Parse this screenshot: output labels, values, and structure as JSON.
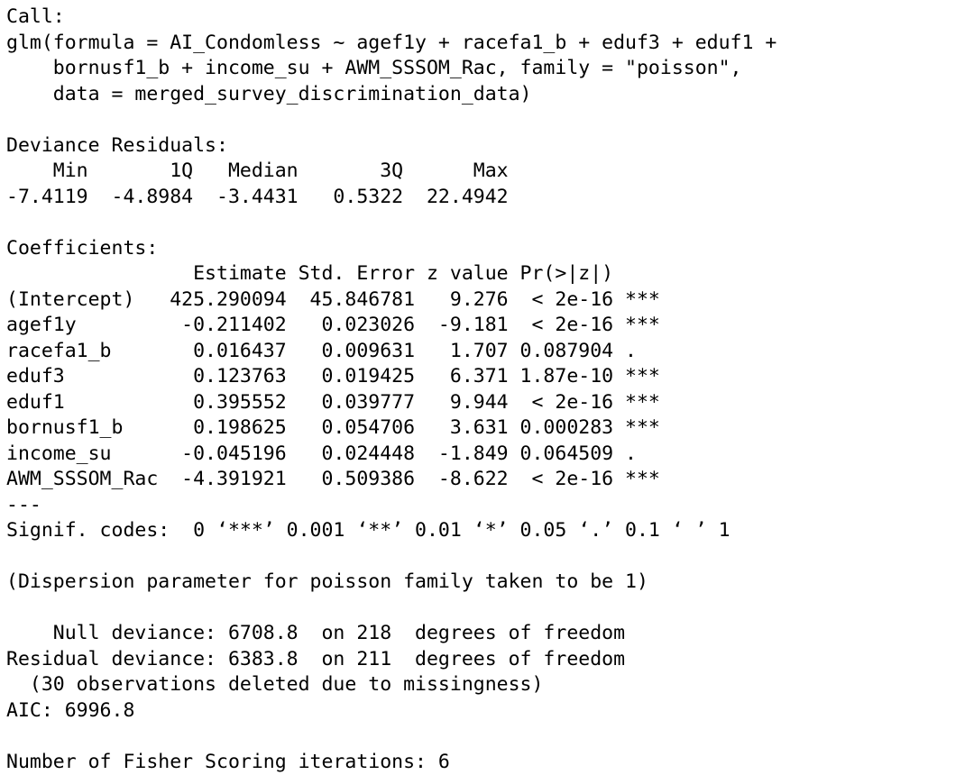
{
  "console": {
    "lines": [
      "Call:",
      "glm(formula = AI_Condomless ~ agef1y + racefa1_b + eduf3 + eduf1 +",
      "    bornusf1_b + income_su + AWM_SSSOM_Rac, family = \"poisson\",",
      "    data = merged_survey_discrimination_data)",
      "",
      "Deviance Residuals:",
      "    Min       1Q   Median       3Q      Max",
      "-7.4119  -4.8984  -3.4431   0.5322  22.4942",
      "",
      "Coefficients:",
      "                Estimate Std. Error z value Pr(>|z|)",
      "(Intercept)   425.290094  45.846781   9.276  < 2e-16 ***",
      "agef1y         -0.211402   0.023026  -9.181  < 2e-16 ***",
      "racefa1_b       0.016437   0.009631   1.707 0.087904 .",
      "eduf3           0.123763   0.019425   6.371 1.87e-10 ***",
      "eduf1           0.395552   0.039777   9.944  < 2e-16 ***",
      "bornusf1_b      0.198625   0.054706   3.631 0.000283 ***",
      "income_su      -0.045196   0.024448  -1.849 0.064509 .",
      "AWM_SSSOM_Rac  -4.391921   0.509386  -8.622  < 2e-16 ***",
      "---",
      "Signif. codes:  0 ‘***’ 0.001 ‘**’ 0.01 ‘*’ 0.05 ‘.’ 0.1 ‘ ’ 1",
      "",
      "(Dispersion parameter for poisson family taken to be 1)",
      "",
      "    Null deviance: 6708.8  on 218  degrees of freedom",
      "Residual deviance: 6383.8  on 211  degrees of freedom",
      "  (30 observations deleted due to missingness)",
      "AIC: 6996.8",
      "",
      "Number of Fisher Scoring iterations: 6"
    ]
  }
}
